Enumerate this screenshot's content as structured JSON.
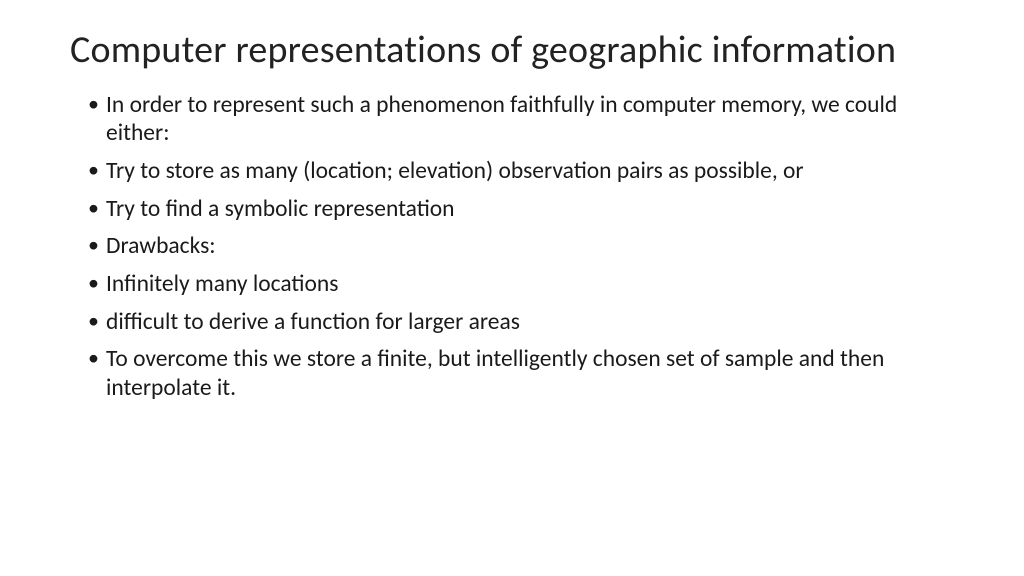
{
  "slide": {
    "title": "Computer representations of geographic information",
    "bullets": [
      "In order to represent such a phenomenon faithfully in computer memory, we could either:",
      "Try to store as many (location; elevation) observation pairs as possible, or",
      " Try to find a symbolic representation",
      "Drawbacks:",
      "Infinitely many locations",
      "difficult to derive a function for larger areas",
      "To overcome this we store a finite, but intelligently chosen set of sample and then interpolate it."
    ],
    "style": {
      "background_color": "#ffffff",
      "title_color": "#222222",
      "text_color": "#1a1a1a",
      "title_fontsize": 38,
      "body_fontsize": 23.5,
      "font_family": "Calibri"
    }
  }
}
